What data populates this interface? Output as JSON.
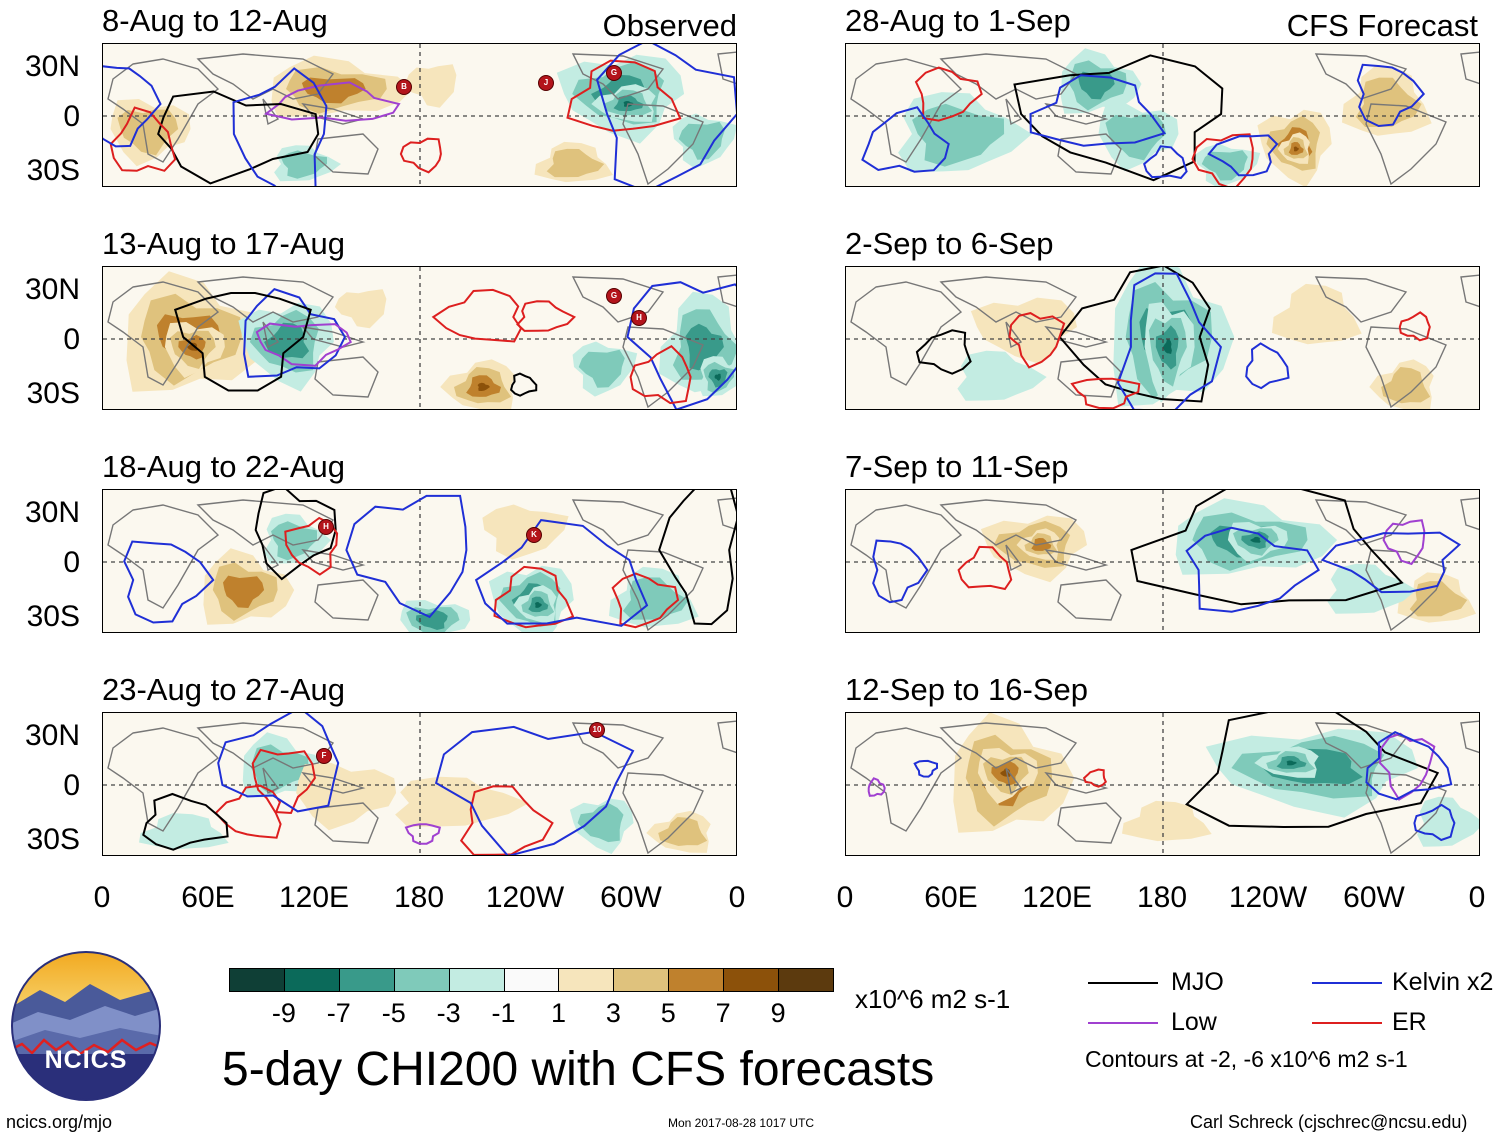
{
  "observed_label": "Observed",
  "forecast_label": "CFS Forecast",
  "panels_left": [
    {
      "title": "8-Aug to 12-Aug"
    },
    {
      "title": "13-Aug to 17-Aug"
    },
    {
      "title": "18-Aug to 22-Aug"
    },
    {
      "title": "23-Aug to 27-Aug"
    }
  ],
  "panels_right": [
    {
      "title": "28-Aug to 1-Sep"
    },
    {
      "title": "2-Sep to 6-Sep"
    },
    {
      "title": "7-Sep to 11-Sep"
    },
    {
      "title": "12-Sep to 16-Sep"
    }
  ],
  "lat_labels": [
    "30N",
    "0",
    "30S"
  ],
  "lon_labels": [
    "0",
    "60E",
    "120E",
    "180",
    "120W",
    "60W",
    "0"
  ],
  "colorbar": {
    "colors": [
      "#0f3f36",
      "#0b6a5a",
      "#399a8a",
      "#7fcaba",
      "#c3ece2",
      "#fafafa",
      "#f6e5bc",
      "#dfc27d",
      "#bf812d",
      "#8c510a",
      "#5c3a0e"
    ],
    "labels": [
      "-9",
      "-7",
      "-5",
      "-3",
      "-1",
      "1",
      "3",
      "5",
      "7",
      "9"
    ],
    "units": "x10^6 m2 s-1"
  },
  "legend": {
    "items": [
      {
        "label": "MJO",
        "color": "#000000"
      },
      {
        "label": "Kelvin x2",
        "color": "#1f2fd6"
      },
      {
        "label": "Low",
        "color": "#a040d0"
      },
      {
        "label": "ER",
        "color": "#dd1f1f"
      }
    ],
    "note": "Contours at -2, -6 x10^6 m2 s-1"
  },
  "main_title": "5-day CHI200 with CFS forecasts",
  "footer": {
    "url": "ncics.org/mjo",
    "timestamp": "Mon 2017-08-28 1017 UTC",
    "author": "Carl Schreck (cjschrec@ncsu.edu)"
  },
  "logo_text": "NCICS",
  "storm_markers": [
    {
      "panel": 0,
      "letter": "B"
    },
    {
      "panel": 0,
      "letter": "J"
    },
    {
      "panel": 0,
      "letter": "G"
    },
    {
      "panel": 1,
      "letter": "G"
    },
    {
      "panel": 1,
      "letter": "H"
    },
    {
      "panel": 2,
      "letter": "H"
    },
    {
      "panel": 2,
      "letter": "K"
    },
    {
      "panel": 3,
      "letter": "F"
    },
    {
      "panel": 3,
      "letter": "10"
    }
  ]
}
